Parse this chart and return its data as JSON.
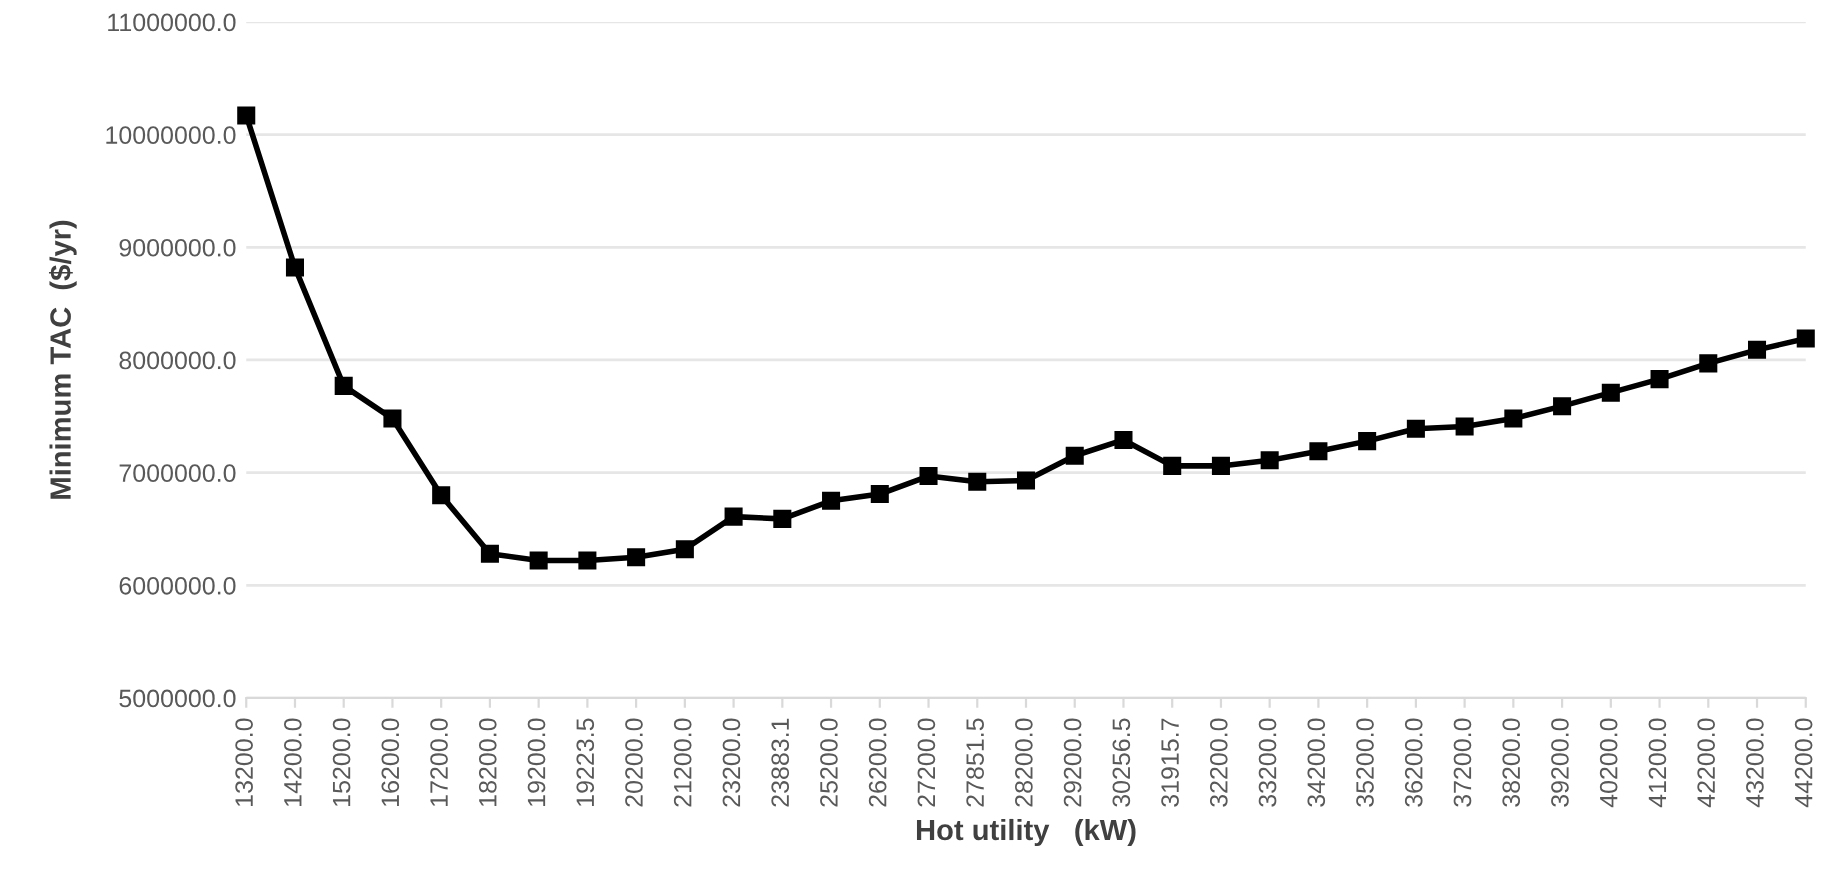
{
  "chart_data": {
    "type": "line",
    "xlabel": "Hot utility   (kW)",
    "ylabel": "Minimum TAC  ($/yr)",
    "categories": [
      "13200.0",
      "14200.0",
      "15200.0",
      "16200.0",
      "17200.0",
      "18200.0",
      "19200.0",
      "19223.5",
      "20200.0",
      "21200.0",
      "23200.0",
      "23883.1",
      "25200.0",
      "26200.0",
      "27200.0",
      "27851.5",
      "28200.0",
      "29200.0",
      "30256.5",
      "31915.7",
      "32200.0",
      "33200.0",
      "34200.0",
      "35200.0",
      "36200.0",
      "37200.0",
      "38200.0",
      "39200.0",
      "40200.0",
      "41200.0",
      "42200.0",
      "43200.0",
      "44200.0"
    ],
    "series": [
      {
        "color": "#000000",
        "values": [
          10170000,
          8820000,
          7770000,
          7480000,
          6800000,
          6280000,
          6220000,
          6220000,
          6250000,
          6320000,
          6610000,
          6590000,
          6750000,
          6810000,
          6970000,
          6920000,
          6930000,
          7150000,
          7290000,
          7060000,
          7060000,
          7110000,
          7190000,
          7280000,
          7390000,
          7410000,
          7480000,
          7590000,
          7710000,
          7830000,
          7970000,
          8090000,
          8190000
        ]
      }
    ],
    "ylim": [
      5000000,
      11000000
    ],
    "yticks": [
      {
        "value": 5000000,
        "label": "5000000.0"
      },
      {
        "value": 6000000,
        "label": "6000000.0"
      },
      {
        "value": 7000000,
        "label": "7000000.0"
      },
      {
        "value": 8000000,
        "label": "8000000.0"
      },
      {
        "value": 9000000,
        "label": "9000000.0"
      },
      {
        "value": 10000000,
        "label": "10000000.0"
      },
      {
        "value": 11000000,
        "label": "11000000.0"
      }
    ],
    "grid": "y",
    "marker": "square",
    "line_style": "solid"
  }
}
